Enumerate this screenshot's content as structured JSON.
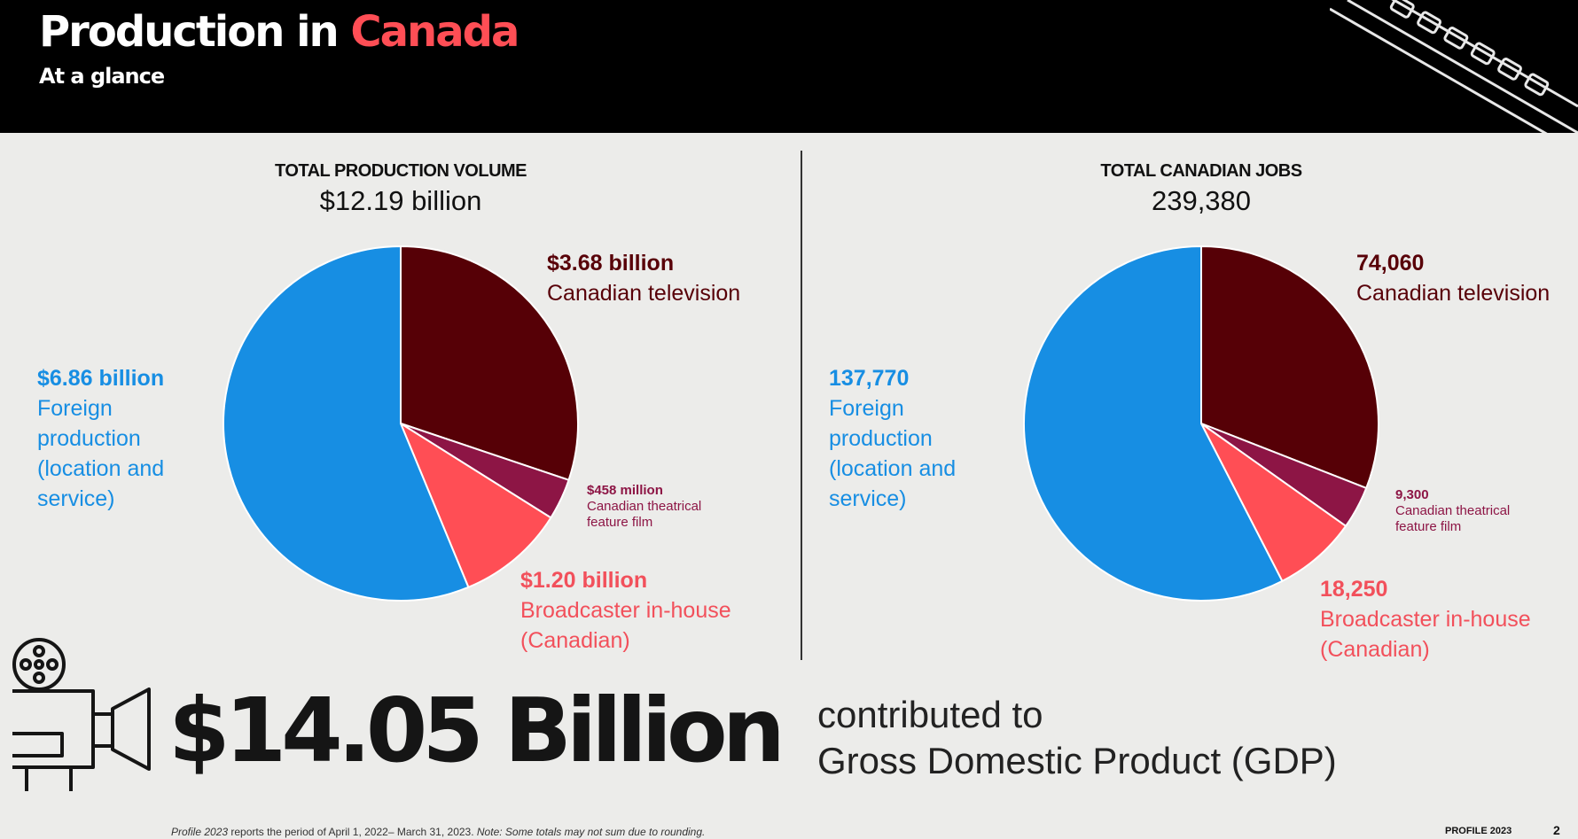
{
  "header": {
    "title_part1": "Production in",
    "title_part2": "Canada",
    "subtitle": "At a glance"
  },
  "colors": {
    "canadian_tv": "#560006",
    "film": "#8d1545",
    "broadcaster": "#ff4e55",
    "foreign": "#178ee3"
  },
  "chart_data": [
    {
      "type": "pie",
      "title": "TOTAL PRODUCTION VOLUME",
      "total": "$12.19 billion",
      "slices": [
        {
          "label_value": "$3.68 billion",
          "label": "Canadian television",
          "value": 3.68,
          "color": "#560006"
        },
        {
          "label_value": "$458 million",
          "label": "Canadian theatrical feature film",
          "value": 0.458,
          "color": "#8d1545"
        },
        {
          "label_value": "$1.20 billion",
          "label": "Broadcaster in-house (Canadian)",
          "value": 1.2,
          "color": "#ff4e55"
        },
        {
          "label_value": "$6.86 billion",
          "label": "Foreign production (location and service)",
          "value": 6.86,
          "color": "#178ee3"
        }
      ]
    },
    {
      "type": "pie",
      "title": "TOTAL CANADIAN JOBS",
      "total": "239,380",
      "slices": [
        {
          "label_value": "74,060",
          "label": "Canadian television",
          "value": 74060,
          "color": "#560006"
        },
        {
          "label_value": "9,300",
          "label": "Canadian theatrical feature film",
          "value": 9300,
          "color": "#8d1545"
        },
        {
          "label_value": "18,250",
          "label": "Broadcaster in-house (Canadian)",
          "value": 18250,
          "color": "#ff4e55"
        },
        {
          "label_value": "137,770",
          "label": "Foreign production (location and service)",
          "value": 137770,
          "color": "#178ee3"
        }
      ]
    }
  ],
  "gdp": {
    "amount": "$14.05 Billion",
    "line1": "contributed to",
    "line2": "Gross Domestic Product (GDP)"
  },
  "footer": {
    "note_italic_1": "Profile 2023",
    "note_text": " reports the period of April 1, 2022– March 31, 2023. ",
    "note_italic_2": "Note: Some totals may not sum due to rounding.",
    "brand": "PROFILE 2023",
    "page": "2"
  }
}
